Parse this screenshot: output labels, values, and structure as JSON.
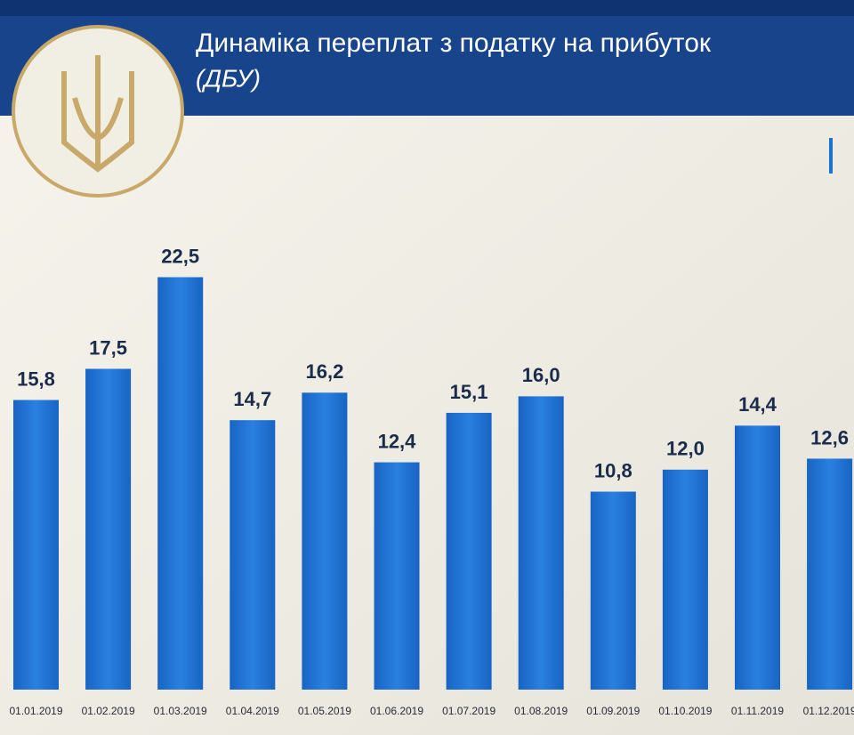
{
  "chart_data": {
    "type": "bar",
    "title": "Динаміка переплат з податку на прибуток",
    "subtitle": "(ДБУ)",
    "categories": [
      "01.01.2019",
      "01.02.2019",
      "01.03.2019",
      "01.04.2019",
      "01.05.2019",
      "01.06.2019",
      "01.07.2019",
      "01.08.2019",
      "01.09.2019",
      "01.10.2019",
      "01.11.2019",
      "01.12.2019"
    ],
    "values": [
      15.8,
      17.5,
      22.5,
      14.7,
      16.2,
      12.4,
      15.1,
      16.0,
      10.8,
      12.0,
      14.4,
      12.6
    ],
    "value_labels": [
      "15,8",
      "17,5",
      "22,5",
      "14,7",
      "16,2",
      "12,4",
      "15,1",
      "16,0",
      "10,8",
      "12,0",
      "14,4",
      "12,6"
    ],
    "color": "#1f72d4"
  }
}
